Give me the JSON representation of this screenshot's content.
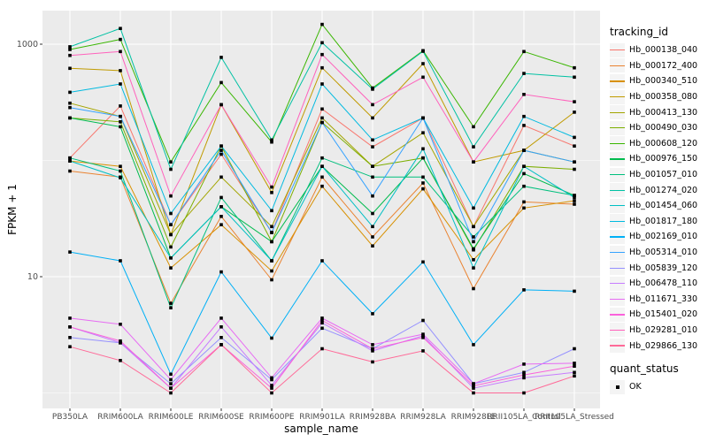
{
  "figure": {
    "y_axis": {
      "label": "FPKM + 1"
    },
    "x_axis": {
      "label": "sample_name"
    },
    "legend": {
      "tracking_title": "tracking_id",
      "quant_title": "quant_status",
      "quant_label": "OK"
    },
    "colors": {
      "panel_bg": "#EBEBEB",
      "grid": "#FFFFFF",
      "axis_text": "#4D4D4D",
      "tick_mark": "#333333",
      "point": "#000000",
      "legend_key_bg": "#F4F4F4"
    }
  },
  "chart_data": {
    "type": "line",
    "title": "",
    "xlabel": "sample_name",
    "ylabel": "FPKM + 1",
    "y_scale": "log10",
    "ylim": [
      0.74,
      1950
    ],
    "y_ticks": [
      10,
      1000
    ],
    "y_minor_gridlines": [
      1,
      100
    ],
    "grid": true,
    "legend_position": "right",
    "legend_title": "tracking_id",
    "point_shape": "filled-square",
    "point_color": "#000000",
    "quant_status": {
      "title": "quant_status",
      "values": [
        "OK"
      ]
    },
    "categories": [
      "PB350LA",
      "RRIM600LA",
      "RRIM600LE",
      "RRIM600SE",
      "RRIM600PE",
      "RRIM901LA",
      "RRIM928BA",
      "RRIM928LA",
      "RRIM928LE",
      "RRII105LA_Control",
      "RRII105LA_Stressed"
    ],
    "series": [
      {
        "name": "Hb_000138_040",
        "color": "#F8766D",
        "values": [
          105,
          294,
          28,
          113,
          24,
          277,
          131,
          232,
          27,
          200,
          133
        ]
      },
      {
        "name": "Hb_000172_400",
        "color": "#EA8331",
        "values": [
          81,
          72,
          5.9,
          33,
          9.4,
          72,
          22,
          64,
          7.9,
          44,
          42
        ]
      },
      {
        "name": "Hb_000340_510",
        "color": "#D89000",
        "values": [
          99,
          89,
          11.9,
          28,
          11.2,
          60,
          18.4,
          57,
          14,
          39,
          45
        ]
      },
      {
        "name": "Hb_000358_080",
        "color": "#C09B00",
        "values": [
          620,
          592,
          23,
          302,
          53,
          627,
          232,
          680,
          97,
          122,
          260
        ]
      },
      {
        "name": "Hb_000413_130",
        "color": "#A3A500",
        "values": [
          311,
          239,
          23,
          72,
          27,
          232,
          89,
          173,
          27,
          122,
          97
        ]
      },
      {
        "name": "Hb_000490_030",
        "color": "#7CAE00",
        "values": [
          232,
          215,
          18,
          133,
          20,
          212,
          89,
          105,
          17,
          89,
          84
        ]
      },
      {
        "name": "Hb_000608_120",
        "color": "#39B600",
        "values": [
          900,
          1100,
          97,
          468,
          144,
          1480,
          420,
          880,
          195,
          865,
          627
        ]
      },
      {
        "name": "Hb_000976_150",
        "color": "#00BB4E",
        "values": [
          232,
          195,
          14.5,
          40,
          20,
          89,
          35,
          105,
          17.4,
          77,
          50
        ]
      },
      {
        "name": "Hb_001057_010",
        "color": "#00BF7D",
        "values": [
          105,
          81,
          5.4,
          48,
          13.7,
          105,
          72,
          72,
          22,
          60,
          50
        ]
      },
      {
        "name": "Hb_001274_020",
        "color": "#00C1A3",
        "values": [
          950,
          1365,
          84,
          770,
          150,
          1030,
          410,
          870,
          131,
          560,
          520
        ]
      },
      {
        "name": "Hb_001454_060",
        "color": "#00BFC4",
        "values": [
          99,
          71,
          14.5,
          40,
          13.7,
          89,
          27,
          126,
          11.9,
          89,
          48
        ]
      },
      {
        "name": "Hb_001817_180",
        "color": "#00BAE0",
        "values": [
          386,
          455,
          35,
          133,
          37,
          455,
          150,
          232,
          39,
          239,
          158
        ]
      },
      {
        "name": "Hb_002169_010",
        "color": "#00B0F6",
        "values": [
          16.3,
          13.7,
          1.45,
          11,
          2.96,
          13.7,
          4.8,
          13.4,
          2.6,
          7.7,
          7.5
        ]
      },
      {
        "name": "Hb_005314_010",
        "color": "#35A2FF",
        "values": [
          285,
          239,
          28,
          122,
          24,
          212,
          49.5,
          232,
          20,
          122,
          97
        ]
      },
      {
        "name": "Hb_005839_120",
        "color": "#9590FF",
        "values": [
          3.0,
          2.7,
          1.2,
          3.0,
          1.3,
          3.6,
          2.4,
          4.2,
          1.2,
          1.5,
          2.4
        ]
      },
      {
        "name": "Hb_006478_110",
        "color": "#C77CFF",
        "values": [
          3.7,
          2.7,
          1.1,
          3.7,
          1.16,
          4.0,
          2.3,
          3.1,
          1.1,
          1.35,
          1.5
        ]
      },
      {
        "name": "Hb_011671_330",
        "color": "#E76BF3",
        "values": [
          4.4,
          3.9,
          1.3,
          4.4,
          1.35,
          4.4,
          2.6,
          3.2,
          1.2,
          1.77,
          1.8
        ]
      },
      {
        "name": "Hb_015401_020",
        "color": "#FA62DB",
        "values": [
          3.7,
          2.8,
          1.1,
          2.6,
          1.1,
          4.2,
          2.4,
          3.0,
          1.15,
          1.43,
          1.7
        ]
      },
      {
        "name": "Hb_029281_010",
        "color": "#FF62BC",
        "values": [
          800,
          865,
          49.5,
          302,
          59,
          815,
          302,
          520,
          97,
          370,
          320
        ]
      },
      {
        "name": "Hb_029866_130",
        "color": "#FF6A98",
        "values": [
          2.5,
          1.9,
          1.0,
          2.6,
          1.0,
          2.4,
          1.85,
          2.3,
          1.0,
          1.0,
          1.4
        ]
      }
    ]
  }
}
